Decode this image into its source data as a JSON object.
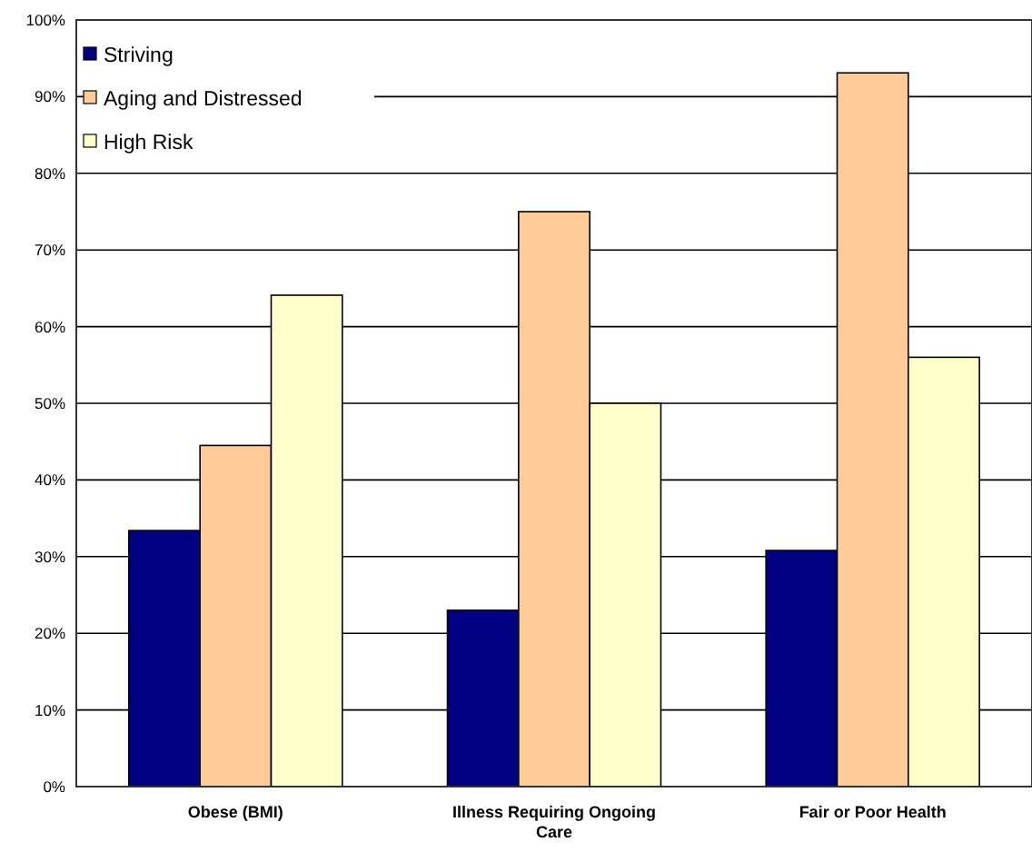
{
  "chart_data": {
    "type": "bar",
    "categories": [
      "Obese (BMI)",
      "Illness Requiring Ongoing Care",
      "Fair or Poor Health"
    ],
    "series": [
      {
        "name": "Striving",
        "color": "#000080",
        "values": [
          33.4,
          23,
          30.8
        ]
      },
      {
        "name": "Aging and Distressed",
        "color": "#ffcc99",
        "values": [
          44.5,
          75,
          93.1
        ]
      },
      {
        "name": "High Risk",
        "color": "#ffffcc",
        "values": [
          64.1,
          50,
          56
        ]
      }
    ],
    "ylim": [
      0,
      100
    ],
    "yticks": [
      {
        "value": 0,
        "label": "0%"
      },
      {
        "value": 10,
        "label": "10%"
      },
      {
        "value": 20,
        "label": "20%"
      },
      {
        "value": 30,
        "label": "30%"
      },
      {
        "value": 40,
        "label": "40%"
      },
      {
        "value": 50,
        "label": "50%"
      },
      {
        "value": 60,
        "label": "60%"
      },
      {
        "value": 70,
        "label": "70%"
      },
      {
        "value": 80,
        "label": "80%"
      },
      {
        "value": 90,
        "label": "90%"
      },
      {
        "value": 100,
        "label": "100%"
      }
    ],
    "grid": "y",
    "legend": "top left"
  }
}
